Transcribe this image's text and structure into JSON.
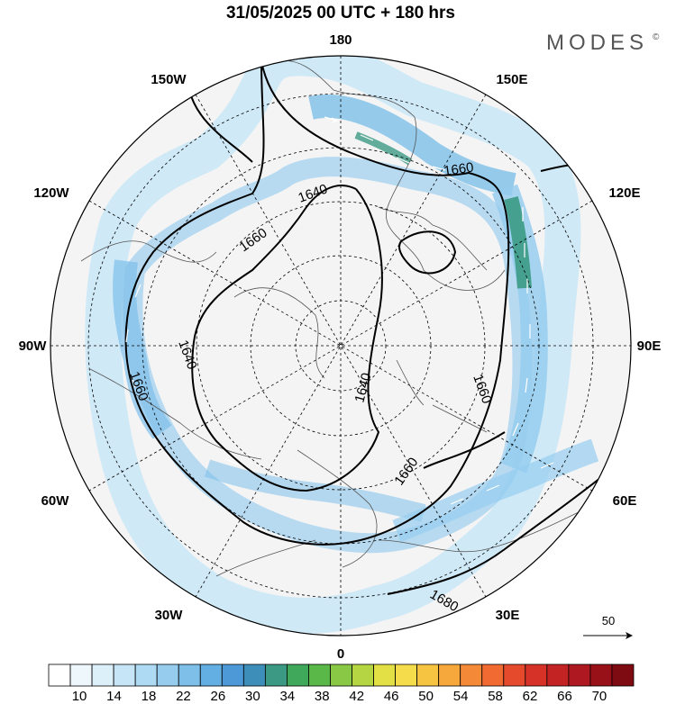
{
  "title": "31/05/2025  00 UTC  + 180 hrs",
  "logo": "MODES",
  "logo_mark": "©",
  "longitude_labels": {
    "top": "180",
    "bottom": "0",
    "left": "90W",
    "right": "90E",
    "upper_left_1": "150W",
    "upper_left_2": "120W",
    "lower_left_1": "60W",
    "lower_left_2": "30W",
    "upper_right_1": "150E",
    "upper_right_2": "120E",
    "lower_right_1": "60E",
    "lower_right_2": "30E"
  },
  "contour_labels": [
    "1640",
    "1660",
    "1660",
    "1640",
    "1660",
    "1660",
    "1640",
    "1660",
    "1680"
  ],
  "vector_reference": "50",
  "colorbar": {
    "labels": [
      "10",
      "14",
      "18",
      "22",
      "26",
      "30",
      "34",
      "38",
      "42",
      "46",
      "50",
      "54",
      "58",
      "62",
      "66",
      "70"
    ],
    "colors": [
      "#ffffff",
      "#eef7fc",
      "#dcf0fa",
      "#c6e6f7",
      "#aedaf3",
      "#96cdef",
      "#7dbfe9",
      "#63aee2",
      "#4d98d6",
      "#3d8fba",
      "#3c9a84",
      "#3fa85a",
      "#5ab848",
      "#88c844",
      "#b5d642",
      "#e2e044",
      "#f5dc4a",
      "#f7c442",
      "#f6a83c",
      "#f48a38",
      "#f06a32",
      "#e64a2c",
      "#d63228",
      "#c42324",
      "#ae1820",
      "#981018",
      "#7e0a12"
    ]
  }
}
